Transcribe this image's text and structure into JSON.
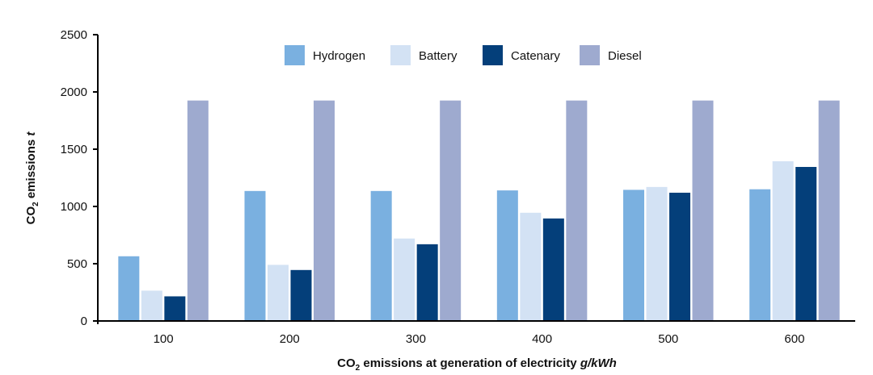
{
  "chart_data": {
    "type": "bar",
    "title": "",
    "xlabel": {
      "prefix": "CO",
      "subscript": "2",
      "main": " emissions at generation of electricity ",
      "unit": "g/kWh"
    },
    "ylabel": {
      "prefix": "CO",
      "subscript": "2",
      "main": " emissions ",
      "unit": "t"
    },
    "ylim": [
      0,
      2500
    ],
    "yticks": [
      0,
      500,
      1000,
      1500,
      2000,
      2500
    ],
    "grid": false,
    "legend_position": "top-center",
    "categories": [
      "100",
      "200",
      "300",
      "400",
      "500",
      "600"
    ],
    "series": [
      {
        "name": "Hydrogen",
        "color": "#7ab0e0",
        "values": [
          565,
          1135,
          1135,
          1140,
          1145,
          1150
        ]
      },
      {
        "name": "Battery",
        "color": "#d3e2f4",
        "values": [
          265,
          490,
          720,
          945,
          1170,
          1395
        ]
      },
      {
        "name": "Catenary",
        "color": "#043f7a",
        "values": [
          215,
          445,
          670,
          895,
          1120,
          1345
        ]
      },
      {
        "name": "Diesel",
        "color": "#9eaacf",
        "values": [
          1925,
          1925,
          1925,
          1925,
          1925,
          1925
        ]
      }
    ]
  }
}
